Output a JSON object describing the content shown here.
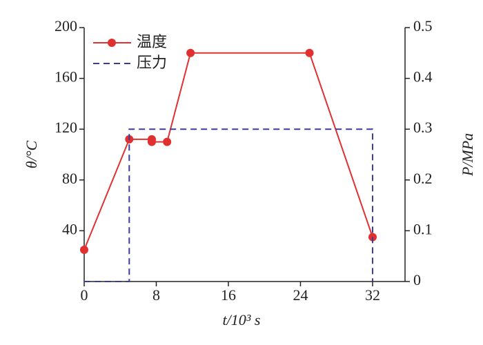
{
  "chart_data": {
    "type": "line",
    "xlabel": "t/10³ s",
    "ylabel": "θ/°C",
    "y2label": "P/MPa",
    "xlim": [
      0,
      35.6
    ],
    "xticks": [
      0,
      8,
      16,
      24,
      32
    ],
    "ylim": [
      0,
      200
    ],
    "yticks": [
      40,
      80,
      120,
      160,
      200
    ],
    "y2lim": [
      0,
      0.5
    ],
    "y2ticks": [
      0,
      0.1,
      0.2,
      0.3,
      0.4,
      0.5
    ],
    "legend": "upper left",
    "series": [
      {
        "name": "温度",
        "color": "#e0302f",
        "marker": true,
        "dashed": false,
        "x": [
          0,
          5,
          7.5,
          7.5,
          9.2,
          11.8,
          25,
          32
        ],
        "values": [
          25,
          112,
          112,
          110,
          110,
          180,
          180,
          35
        ]
      },
      {
        "name": "压力",
        "color": "#3a3a9a",
        "marker": false,
        "dashed": true,
        "axis": "y2",
        "x": [
          0,
          5,
          5,
          32,
          32
        ],
        "values": [
          0,
          0,
          0.3,
          0.3,
          0
        ]
      }
    ]
  }
}
